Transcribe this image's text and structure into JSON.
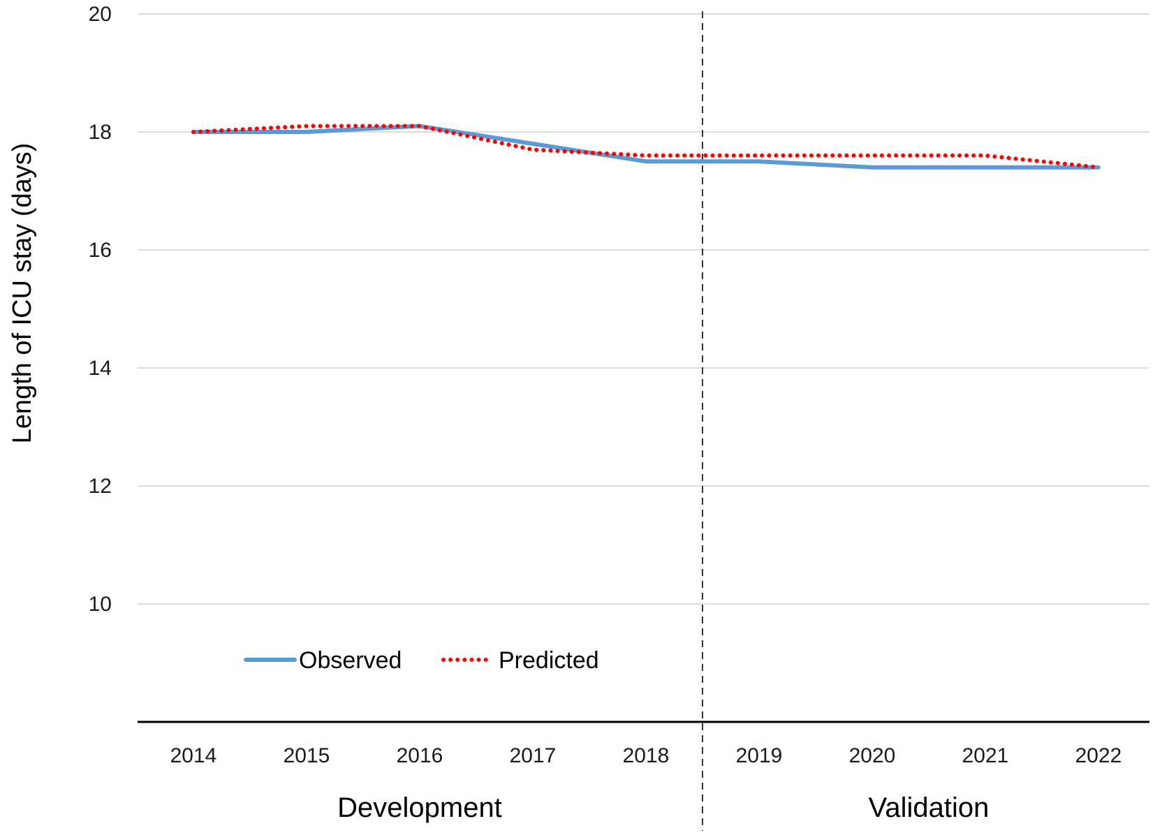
{
  "chart_data": {
    "type": "line",
    "title": "",
    "xlabel": "",
    "ylabel": "Length of ICU stay (days)",
    "categories": [
      "2014",
      "2015",
      "2016",
      "2017",
      "2018",
      "2019",
      "2020",
      "2021",
      "2022"
    ],
    "series": [
      {
        "name": "Observed",
        "values": [
          18.0,
          18.0,
          18.1,
          17.8,
          17.5,
          17.5,
          17.4,
          17.4,
          17.4
        ],
        "color": "#5b9bd5",
        "style": "solid"
      },
      {
        "name": "Predicted",
        "values": [
          18.0,
          18.1,
          18.1,
          17.7,
          17.6,
          17.6,
          17.6,
          17.6,
          17.4
        ],
        "color": "#ff0000",
        "style": "dotted"
      }
    ],
    "ylim": [
      8,
      20
    ],
    "yticks": [
      "10",
      "12",
      "14",
      "16",
      "18",
      "20"
    ],
    "grid": true,
    "legend_position": "bottom-left",
    "groups": [
      {
        "label": "Development",
        "from": "2014",
        "to": "2018"
      },
      {
        "label": "Validation",
        "from": "2019",
        "to": "2022"
      }
    ],
    "divider_between": [
      "2018",
      "2019"
    ]
  }
}
